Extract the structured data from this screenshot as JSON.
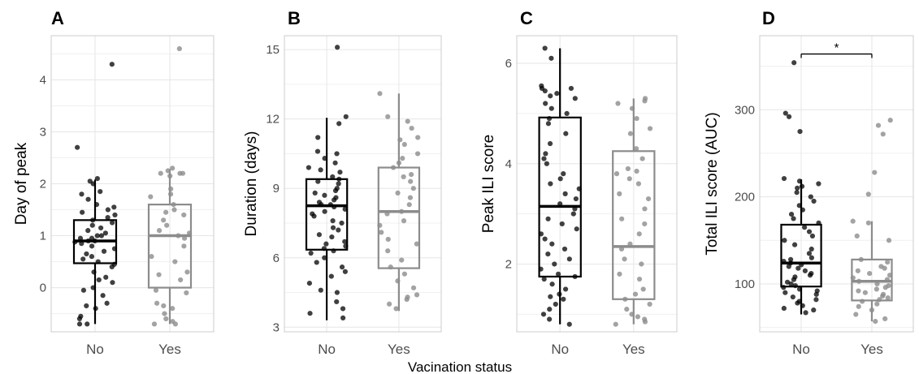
{
  "figure": {
    "x_axis_title": "Vacination status"
  },
  "colors": {
    "no": "#000000",
    "yes": "#8c8c8c",
    "grid": "#e6e6e6",
    "panel_border": "#cccccc"
  },
  "chart_data": [
    {
      "panel": "A",
      "type": "box",
      "categories": [
        "No",
        "Yes"
      ],
      "ylabel": "Day of peak",
      "ylim": [
        -0.85,
        4.85
      ],
      "yticks": [
        0,
        1,
        2,
        3,
        4
      ],
      "boxes": [
        {
          "category": "No",
          "whisker_low": -0.7,
          "q1": 0.47,
          "median": 0.9,
          "q3": 1.3,
          "whisker_high": 2.08
        },
        {
          "category": "Yes",
          "whisker_low": -0.7,
          "q1": 0.0,
          "median": 1.0,
          "q3": 1.6,
          "whisker_high": 2.28
        }
      ],
      "points": {
        "No": [
          4.3,
          2.7,
          2.1,
          2.05,
          2.0,
          1.85,
          1.8,
          1.7,
          1.6,
          1.55,
          1.5,
          1.45,
          1.4,
          1.35,
          1.3,
          1.25,
          1.2,
          1.15,
          1.1,
          1.05,
          1.0,
          1.0,
          0.95,
          0.95,
          0.9,
          0.9,
          0.88,
          0.85,
          0.8,
          0.75,
          0.7,
          0.65,
          0.6,
          0.55,
          0.5,
          0.45,
          0.4,
          0.3,
          0.2,
          0.15,
          0.1,
          0.0,
          -0.05,
          -0.15,
          -0.3,
          -0.35,
          -0.4,
          -0.55,
          -0.6,
          -0.7,
          -0.7
        ],
        "Yes": [
          4.6,
          2.3,
          2.25,
          2.2,
          2.2,
          2.2,
          2.15,
          1.9,
          1.8,
          1.75,
          1.6,
          1.5,
          1.45,
          1.4,
          1.3,
          1.2,
          1.1,
          1.05,
          1.0,
          0.95,
          0.8,
          0.6,
          0.5,
          0.3,
          0.25,
          0.15,
          -0.05,
          -0.1,
          -0.3,
          -0.35,
          -0.4,
          -0.5,
          -0.6,
          -0.65,
          -0.7,
          -0.7
        ]
      }
    },
    {
      "panel": "B",
      "type": "box",
      "categories": [
        "No",
        "Yes"
      ],
      "ylabel": "Duration (days)",
      "ylim": [
        2.8,
        15.6
      ],
      "yticks": [
        3,
        6,
        9,
        12,
        15
      ],
      "boxes": [
        {
          "category": "No",
          "whisker_low": 3.3,
          "q1": 6.35,
          "median": 8.25,
          "q3": 9.4,
          "whisker_high": 12.05
        },
        {
          "category": "Yes",
          "whisker_low": 3.7,
          "q1": 5.55,
          "median": 8.0,
          "q3": 9.9,
          "whisker_high": 13.1
        }
      ],
      "points": {
        "No": [
          15.1,
          12.1,
          11.8,
          11.2,
          10.6,
          10.5,
          10.3,
          10.1,
          9.9,
          9.8,
          9.7,
          9.5,
          9.4,
          9.3,
          9.2,
          9.0,
          8.9,
          8.8,
          8.7,
          8.6,
          8.5,
          8.4,
          8.3,
          8.3,
          8.2,
          8.1,
          8.0,
          7.9,
          7.8,
          7.6,
          7.5,
          7.3,
          7.2,
          7.0,
          6.9,
          6.7,
          6.6,
          6.5,
          6.4,
          6.3,
          6.2,
          6.0,
          5.8,
          5.6,
          5.4,
          5.2,
          4.9,
          4.6,
          4.5,
          4.1,
          3.8,
          3.6,
          3.4
        ],
        "Yes": [
          13.1,
          12.1,
          11.9,
          11.6,
          11.2,
          11.1,
          10.9,
          10.5,
          10.3,
          10.1,
          9.9,
          9.6,
          9.5,
          9.3,
          9.0,
          8.8,
          8.6,
          8.3,
          8.0,
          7.9,
          7.6,
          7.4,
          7.1,
          6.8,
          6.6,
          6.3,
          5.9,
          5.6,
          5.3,
          5.0,
          4.7,
          4.4,
          4.3,
          4.2,
          4.0,
          3.8
        ]
      }
    },
    {
      "panel": "C",
      "type": "box",
      "categories": [
        "No",
        "Yes"
      ],
      "ylabel": "Peak ILI score",
      "ylim": [
        0.65,
        6.55
      ],
      "yticks": [
        2,
        4,
        6
      ],
      "boxes": [
        {
          "category": "No",
          "whisker_low": 0.8,
          "q1": 1.75,
          "median": 3.15,
          "q3": 4.92,
          "whisker_high": 6.3
        },
        {
          "category": "Yes",
          "whisker_low": 0.8,
          "q1": 1.3,
          "median": 2.35,
          "q3": 4.25,
          "whisker_high": 5.3
        }
      ],
      "points": {
        "No": [
          6.3,
          6.1,
          5.55,
          5.5,
          5.5,
          5.45,
          5.4,
          5.35,
          5.3,
          5.2,
          5.1,
          5.0,
          4.9,
          4.8,
          4.6,
          4.4,
          4.2,
          4.1,
          4.0,
          3.8,
          3.7,
          3.6,
          3.5,
          3.4,
          3.3,
          3.2,
          3.1,
          3.0,
          2.9,
          2.8,
          2.7,
          2.6,
          2.5,
          2.4,
          2.3,
          2.2,
          2.1,
          2.0,
          1.9,
          1.8,
          1.75,
          1.7,
          1.6,
          1.5,
          1.4,
          1.35,
          1.3,
          1.2,
          1.1,
          1.0,
          0.9,
          0.8
        ],
        "Yes": [
          5.3,
          5.25,
          5.2,
          5.1,
          4.9,
          4.7,
          4.6,
          4.3,
          4.1,
          3.9,
          3.85,
          3.8,
          3.7,
          3.6,
          3.4,
          3.3,
          3.1,
          2.9,
          2.8,
          2.6,
          2.4,
          2.3,
          2.1,
          2.0,
          1.8,
          1.7,
          1.5,
          1.4,
          1.3,
          1.2,
          1.1,
          1.0,
          0.95,
          0.9,
          0.85,
          0.8
        ]
      }
    },
    {
      "panel": "D",
      "type": "box",
      "categories": [
        "No",
        "Yes"
      ],
      "ylabel": "Total ILI score (AUC)",
      "ylim": [
        45,
        385
      ],
      "yticks": [
        100,
        200,
        300
      ],
      "boxes": [
        {
          "category": "No",
          "whisker_low": 65,
          "q1": 97,
          "median": 124,
          "q3": 168,
          "whisker_high": 220
        },
        {
          "category": "Yes",
          "whisker_low": 57,
          "q1": 81,
          "median": 103,
          "q3": 128,
          "whisker_high": 172
        }
      ],
      "points": {
        "No": [
          354,
          296,
          292,
          275,
          221,
          218,
          215,
          212,
          210,
          205,
          200,
          195,
          190,
          185,
          180,
          175,
          170,
          165,
          160,
          155,
          150,
          145,
          140,
          135,
          130,
          128,
          126,
          124,
          122,
          120,
          118,
          115,
          112,
          110,
          108,
          105,
          102,
          100,
          98,
          96,
          94,
          92,
          90,
          88,
          85,
          82,
          80,
          78,
          75,
          72,
          70,
          67
        ],
        "Yes": [
          288,
          282,
          272,
          228,
          203,
          172,
          170,
          155,
          150,
          128,
          125,
          120,
          118,
          115,
          112,
          110,
          107,
          105,
          103,
          100,
          98,
          96,
          94,
          92,
          90,
          88,
          86,
          84,
          82,
          80,
          77,
          74,
          70,
          65,
          60,
          57
        ]
      },
      "significance": {
        "label": "*",
        "between": [
          "No",
          "Yes"
        ],
        "y": 364
      }
    }
  ]
}
